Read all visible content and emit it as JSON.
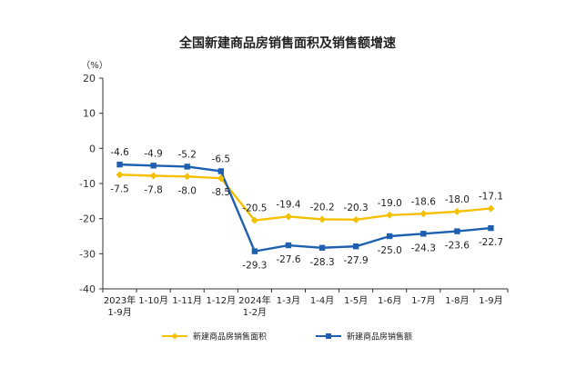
{
  "chart_data": {
    "type": "line",
    "title": "全国新建商品房销售面积及销售额增速",
    "unit_label": "（%）",
    "ylim": [
      -40,
      20
    ],
    "yticks": [
      20,
      10,
      0,
      -10,
      -20,
      -30,
      -40
    ],
    "categories": [
      [
        "2023年",
        "1-9月"
      ],
      [
        "1-10月"
      ],
      [
        "1-11月"
      ],
      [
        "1-12月"
      ],
      [
        "2024年",
        "1-2月"
      ],
      [
        "1-3月"
      ],
      [
        "1-4月"
      ],
      [
        "1-5月"
      ],
      [
        "1-6月"
      ],
      [
        "1-7月"
      ],
      [
        "1-8月"
      ],
      [
        "1-9月"
      ]
    ],
    "series": [
      {
        "name": "新建商品房销售面积",
        "color": "#f5c000",
        "marker": "diamond",
        "values": [
          -7.5,
          -7.8,
          -8.0,
          -8.5,
          -20.5,
          -19.4,
          -20.2,
          -20.3,
          -19.0,
          -18.6,
          -18.0,
          -17.1
        ],
        "labels": [
          "-7.5",
          "-7.8",
          "-8.0",
          "-8.5",
          "-20.5",
          "-19.4",
          "-20.2",
          "-20.3",
          "-19.0",
          "-18.6",
          "-18.0",
          "-17.1"
        ]
      },
      {
        "name": "新建商品房销售额",
        "color": "#1f5fb0",
        "marker": "square",
        "values": [
          -4.6,
          -4.9,
          -5.2,
          -6.5,
          -29.3,
          -27.6,
          -28.3,
          -27.9,
          -25.0,
          -24.3,
          -23.6,
          -22.7
        ],
        "labels": [
          "-4.6",
          "-4.9",
          "-5.2",
          "-6.5",
          "-29.3",
          "-27.6",
          "-28.3",
          "-27.9",
          "-25.0",
          "-24.3",
          "-23.6",
          "-22.7"
        ]
      }
    ],
    "legend_position": "bottom"
  }
}
